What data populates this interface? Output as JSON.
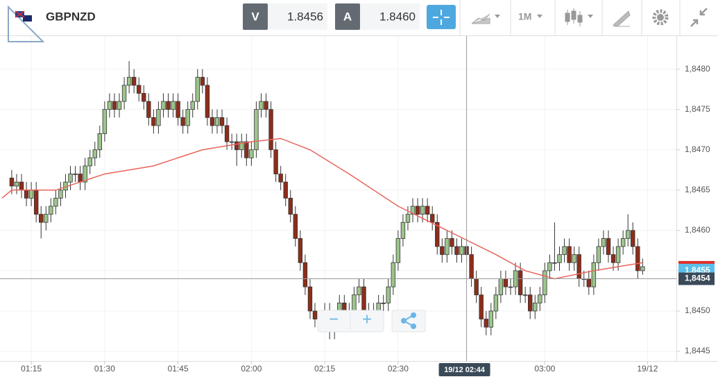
{
  "toolbar": {
    "symbol": "GBPNZD",
    "bid_label": "V",
    "bid": "1.8456",
    "ask_label": "A",
    "ask": "1.8460",
    "interval": "1M"
  },
  "chart_controls": {
    "zoom_out": "−",
    "zoom_in": "+"
  },
  "chart_data": {
    "type": "candlestick",
    "up_color": "#9dc58c",
    "down_color": "#8e2d1b",
    "grid": true,
    "x": [
      71,
      72,
      73,
      74,
      75,
      76,
      77,
      78,
      79,
      80,
      81,
      82,
      83,
      84,
      85,
      86,
      87,
      88,
      89,
      90,
      91,
      92,
      93,
      94,
      95,
      96,
      97,
      98,
      99,
      100,
      101,
      102,
      103,
      104,
      105,
      106,
      107,
      108,
      109,
      110,
      111,
      112,
      113,
      114,
      115,
      116,
      117,
      118,
      119,
      120,
      121,
      122,
      123,
      124,
      125,
      126,
      127,
      128,
      129,
      130,
      131,
      132,
      133,
      134,
      135,
      136,
      137,
      138,
      139,
      140,
      141,
      142,
      143,
      144,
      145,
      146,
      147,
      148,
      149,
      150,
      151,
      152,
      153,
      154,
      155,
      156,
      157,
      158,
      159,
      160,
      161,
      162,
      163,
      164,
      165,
      166,
      167,
      168,
      169,
      170,
      171,
      172,
      173,
      174,
      175,
      176,
      177,
      178,
      179,
      180,
      181,
      182,
      183,
      184,
      185,
      186,
      187,
      188,
      189,
      190,
      191,
      192,
      193,
      194,
      195,
      196,
      197,
      198,
      199,
      200
    ],
    "open": [
      1.84665,
      1.84655,
      1.8466,
      1.8465,
      1.8464,
      1.8465,
      1.8462,
      1.8461,
      1.8462,
      1.8463,
      1.8464,
      1.8465,
      1.8466,
      1.8467,
      1.8467,
      1.8466,
      1.8468,
      1.8469,
      1.847,
      1.8472,
      1.8475,
      1.8476,
      1.8475,
      1.8476,
      1.8478,
      1.8479,
      1.8478,
      1.8477,
      1.8476,
      1.8474,
      1.8473,
      1.8475,
      1.8476,
      1.8475,
      1.8476,
      1.8474,
      1.8473,
      1.8475,
      1.8476,
      1.8479,
      1.8478,
      1.8474,
      1.8473,
      1.8474,
      1.8473,
      1.8471,
      1.8471,
      1.847,
      1.8471,
      1.8469,
      1.847,
      1.8475,
      1.8476,
      1.8475,
      1.847,
      1.8467,
      1.8466,
      1.8464,
      1.8462,
      1.8459,
      1.8456,
      1.8453,
      1.845,
      1.8449,
      1.8449,
      1.845,
      1.84475,
      1.8449,
      1.8451,
      1.8449,
      1.845,
      1.8452,
      1.8453,
      1.845,
      1.8449,
      1.845,
      1.8451,
      1.8451,
      1.8453,
      1.8456,
      1.8459,
      1.8461,
      1.8462,
      1.8463,
      1.8462,
      1.8463,
      1.8462,
      1.8461,
      1.8458,
      1.8457,
      1.8459,
      1.8458,
      1.8457,
      1.8458,
      1.8457,
      1.8454,
      1.8452,
      1.8449,
      1.8448,
      1.845,
      1.8452,
      1.8454,
      1.8453,
      1.8453,
      1.8455,
      1.8452,
      1.8452,
      1.845,
      1.8451,
      1.8452,
      1.8455,
      1.8456,
      1.8456,
      1.8457,
      1.8458,
      1.8456,
      1.8457,
      1.8454,
      1.8454,
      1.8453,
      1.8456,
      1.8458,
      1.8459,
      1.8457,
      1.8456,
      1.8458,
      1.8459,
      1.846,
      1.8458,
      1.8455
    ],
    "high": [
      1.84675,
      1.8467,
      1.8467,
      1.8466,
      1.8466,
      1.8466,
      1.8463,
      1.8463,
      1.8464,
      1.8465,
      1.8466,
      1.8467,
      1.8468,
      1.8468,
      1.8468,
      1.8469,
      1.847,
      1.8471,
      1.8473,
      1.8476,
      1.8477,
      1.8477,
      1.8477,
      1.8479,
      1.8481,
      1.848,
      1.8479,
      1.8478,
      1.8477,
      1.8475,
      1.8476,
      1.8477,
      1.8477,
      1.8477,
      1.8477,
      1.8475,
      1.8476,
      1.8477,
      1.848,
      1.848,
      1.8479,
      1.8475,
      1.8475,
      1.8475,
      1.8474,
      1.8472,
      1.8472,
      1.8472,
      1.8472,
      1.8471,
      1.8476,
      1.8477,
      1.8477,
      1.8476,
      1.8471,
      1.8468,
      1.8467,
      1.8465,
      1.8463,
      1.846,
      1.8457,
      1.8454,
      1.8451,
      1.845,
      1.8451,
      1.8451,
      1.845,
      1.8452,
      1.8452,
      1.8451,
      1.8453,
      1.8454,
      1.8454,
      1.8451,
      1.8451,
      1.8452,
      1.8452,
      1.8454,
      1.8457,
      1.846,
      1.8462,
      1.8463,
      1.8464,
      1.8464,
      1.8464,
      1.8464,
      1.8463,
      1.8462,
      1.8459,
      1.846,
      1.846,
      1.8459,
      1.8459,
      1.8459,
      1.8458,
      1.8455,
      1.8453,
      1.845,
      1.8451,
      1.8453,
      1.8455,
      1.8455,
      1.8454,
      1.8456,
      1.8456,
      1.8453,
      1.8453,
      1.8452,
      1.8453,
      1.8456,
      1.8457,
      1.8461,
      1.8458,
      1.8459,
      1.8459,
      1.8458,
      1.8458,
      1.8455,
      1.8455,
      1.8457,
      1.8459,
      1.846,
      1.846,
      1.8458,
      1.8459,
      1.846,
      1.8462,
      1.8461,
      1.8459,
      1.84565
    ],
    "low": [
      1.84645,
      1.84645,
      1.8464,
      1.8463,
      1.8463,
      1.8461,
      1.8459,
      1.846,
      1.8461,
      1.8462,
      1.8463,
      1.8464,
      1.8465,
      1.8466,
      1.8465,
      1.8465,
      1.8467,
      1.8468,
      1.8469,
      1.8471,
      1.8474,
      1.8474,
      1.8474,
      1.8475,
      1.8477,
      1.8477,
      1.8476,
      1.8475,
      1.8473,
      1.8472,
      1.8472,
      1.8474,
      1.8474,
      1.8474,
      1.8473,
      1.8472,
      1.8472,
      1.8474,
      1.8475,
      1.8477,
      1.8473,
      1.8472,
      1.8472,
      1.8472,
      1.847,
      1.847,
      1.8468,
      1.8469,
      1.8468,
      1.8468,
      1.8469,
      1.8474,
      1.8474,
      1.8469,
      1.8466,
      1.8465,
      1.8463,
      1.8461,
      1.8458,
      1.8455,
      1.8452,
      1.8449,
      1.8448,
      1.8448,
      1.8448,
      1.84465,
      1.84465,
      1.8448,
      1.8448,
      1.8448,
      1.8449,
      1.8451,
      1.8449,
      1.8448,
      1.8448,
      1.8449,
      1.845,
      1.845,
      1.8452,
      1.8455,
      1.8458,
      1.846,
      1.8461,
      1.8461,
      1.8461,
      1.8461,
      1.846,
      1.8457,
      1.8456,
      1.8456,
      1.8457,
      1.8456,
      1.8456,
      1.8456,
      1.8453,
      1.8451,
      1.8448,
      1.8447,
      1.8447,
      1.8449,
      1.8451,
      1.8452,
      1.8452,
      1.8452,
      1.8451,
      1.8451,
      1.8449,
      1.8449,
      1.845,
      1.8451,
      1.8454,
      1.8455,
      1.8455,
      1.8456,
      1.8455,
      1.8455,
      1.8453,
      1.8453,
      1.8452,
      1.8452,
      1.8455,
      1.8457,
      1.8456,
      1.8455,
      1.8455,
      1.8457,
      1.8458,
      1.8457,
      1.8454,
      1.84545
    ],
    "close": [
      1.84655,
      1.8466,
      1.8465,
      1.8464,
      1.8465,
      1.8462,
      1.8461,
      1.8462,
      1.8463,
      1.8464,
      1.8465,
      1.8466,
      1.8467,
      1.8467,
      1.8466,
      1.8468,
      1.8469,
      1.847,
      1.8472,
      1.8475,
      1.8476,
      1.8475,
      1.8476,
      1.8478,
      1.8479,
      1.8478,
      1.8477,
      1.8476,
      1.8474,
      1.8473,
      1.8475,
      1.8476,
      1.8475,
      1.8476,
      1.8474,
      1.8473,
      1.8475,
      1.8476,
      1.8479,
      1.8478,
      1.8474,
      1.8473,
      1.8474,
      1.8473,
      1.8471,
      1.8471,
      1.847,
      1.8471,
      1.8469,
      1.847,
      1.8475,
      1.8476,
      1.8475,
      1.847,
      1.8467,
      1.8466,
      1.8464,
      1.8462,
      1.8459,
      1.8456,
      1.8453,
      1.845,
      1.8449,
      1.8449,
      1.845,
      1.84475,
      1.8449,
      1.8451,
      1.8449,
      1.845,
      1.8452,
      1.8453,
      1.845,
      1.8449,
      1.845,
      1.8451,
      1.8451,
      1.8453,
      1.8456,
      1.8459,
      1.8461,
      1.8462,
      1.8463,
      1.8462,
      1.8463,
      1.8462,
      1.8461,
      1.8458,
      1.8457,
      1.8459,
      1.8458,
      1.8457,
      1.8458,
      1.8457,
      1.8454,
      1.8452,
      1.8449,
      1.8448,
      1.845,
      1.8452,
      1.8454,
      1.8453,
      1.8453,
      1.8455,
      1.8452,
      1.8452,
      1.845,
      1.8451,
      1.8452,
      1.8455,
      1.8456,
      1.8456,
      1.8457,
      1.8458,
      1.8456,
      1.8457,
      1.8454,
      1.8454,
      1.8453,
      1.8456,
      1.8458,
      1.8459,
      1.8457,
      1.8456,
      1.8458,
      1.8459,
      1.846,
      1.8458,
      1.8455,
      1.84555
    ],
    "moving_average": {
      "color": "#e8635a",
      "x": [
        69,
        71,
        80,
        90,
        100,
        110,
        120,
        126,
        132,
        140,
        150,
        160,
        170,
        176,
        182,
        190,
        200
      ],
      "values": [
        1.8464,
        1.8465,
        1.8465,
        1.8467,
        1.8468,
        1.847,
        1.8471,
        1.84714,
        1.847,
        1.8467,
        1.8463,
        1.846,
        1.8457,
        1.8455,
        1.8454,
        1.8455,
        1.8456
      ]
    },
    "xlim": [
      68.6,
      206.9
    ],
    "xticks": [
      {
        "value": 75,
        "label": "01:15"
      },
      {
        "value": 90,
        "label": "01:30"
      },
      {
        "value": 105,
        "label": "01:45"
      },
      {
        "value": 120,
        "label": "02:00"
      },
      {
        "value": 135,
        "label": "02:15"
      },
      {
        "value": 150,
        "label": "02:30"
      },
      {
        "value": 180,
        "label": "03:00"
      },
      {
        "value": 201,
        "label": "19/12"
      }
    ],
    "ylim": [
      1.84438,
      1.84841
    ],
    "yticks": [
      {
        "value": 1.8445,
        "label": "1,8445"
      },
      {
        "value": 1.845,
        "label": "1,8450"
      },
      {
        "value": 1.8455,
        "label": "1,8455"
      },
      {
        "value": 1.846,
        "label": "1,8460"
      },
      {
        "value": 1.8465,
        "label": "1,8465"
      },
      {
        "value": 1.847,
        "label": "1,8470"
      },
      {
        "value": 1.8475,
        "label": "1,8475"
      },
      {
        "value": 1.848,
        "label": "1,8480"
      }
    ],
    "last_price": {
      "value": 1.8455,
      "label": "1,8455"
    },
    "crosshair": {
      "x": 164,
      "x_label": "19/12 02:44",
      "y": 1.8454,
      "y_label": "1,8454"
    }
  }
}
